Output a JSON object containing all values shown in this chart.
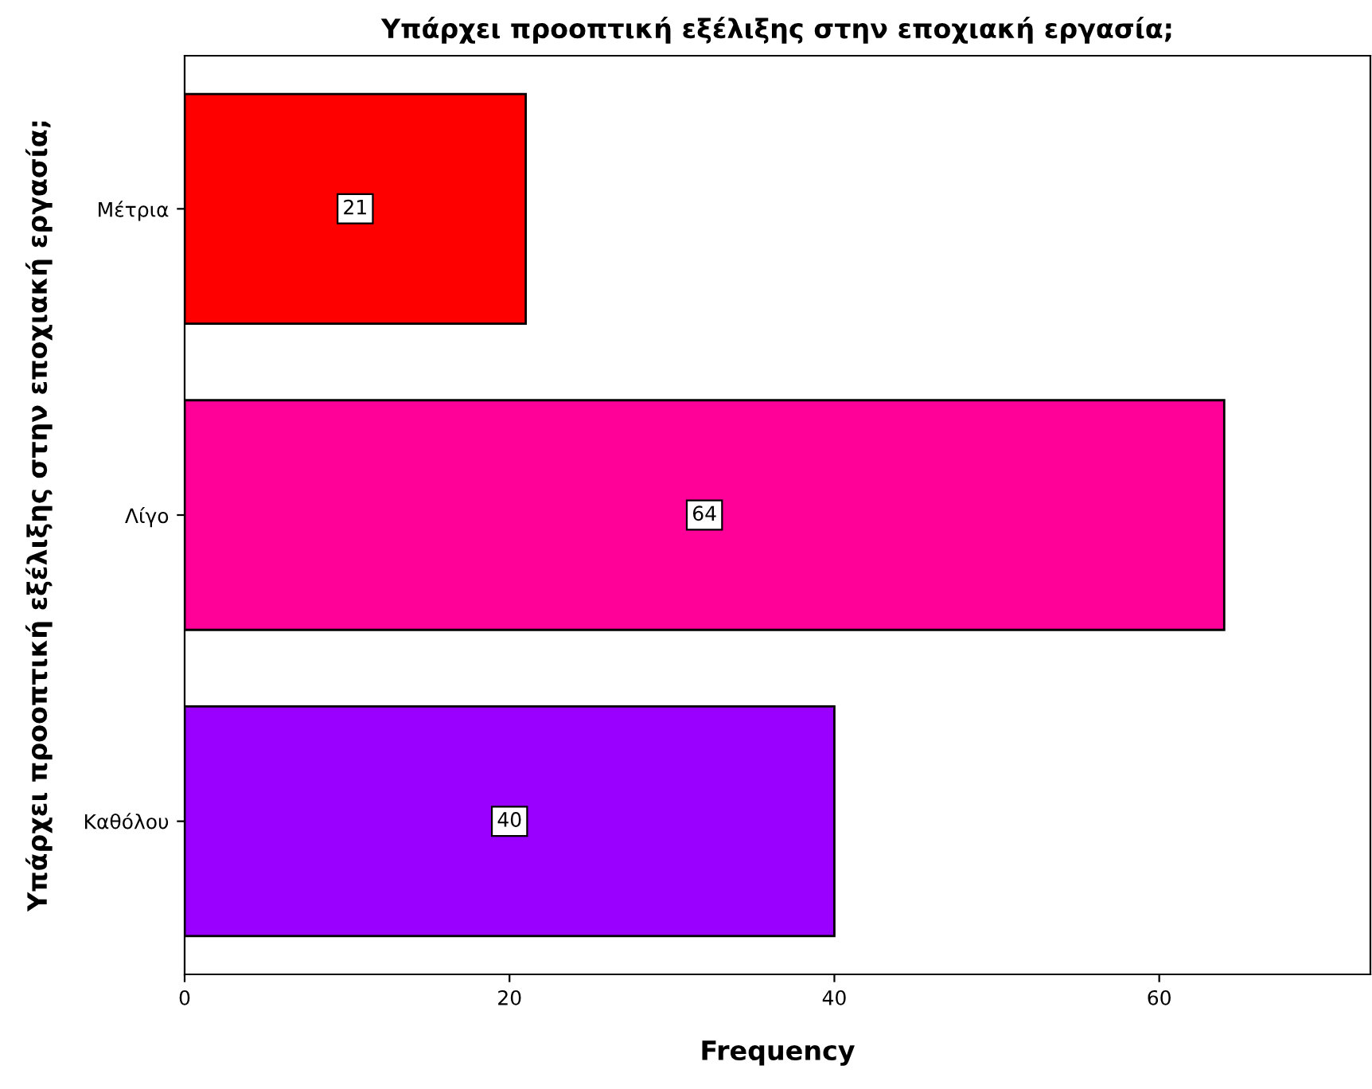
{
  "chart_data": {
    "type": "bar",
    "orientation": "horizontal",
    "title": "Υπάρχει προοπτική εξέλιξης στην εποχιακή εργασία;",
    "xlabel": "Frequency",
    "ylabel": "Υπάρχει προοπτική εξέλιξης στην εποχιακή εργασία;",
    "categories": [
      "Μέτρια",
      "Λίγο",
      "Καθόλου"
    ],
    "values": [
      21,
      64,
      40
    ],
    "colors": [
      "#ff0000",
      "#ff0099",
      "#9900ff"
    ],
    "xlim": [
      0,
      73
    ],
    "xticks": [
      0,
      20,
      40,
      60
    ],
    "grid": false,
    "data_labels": true
  }
}
